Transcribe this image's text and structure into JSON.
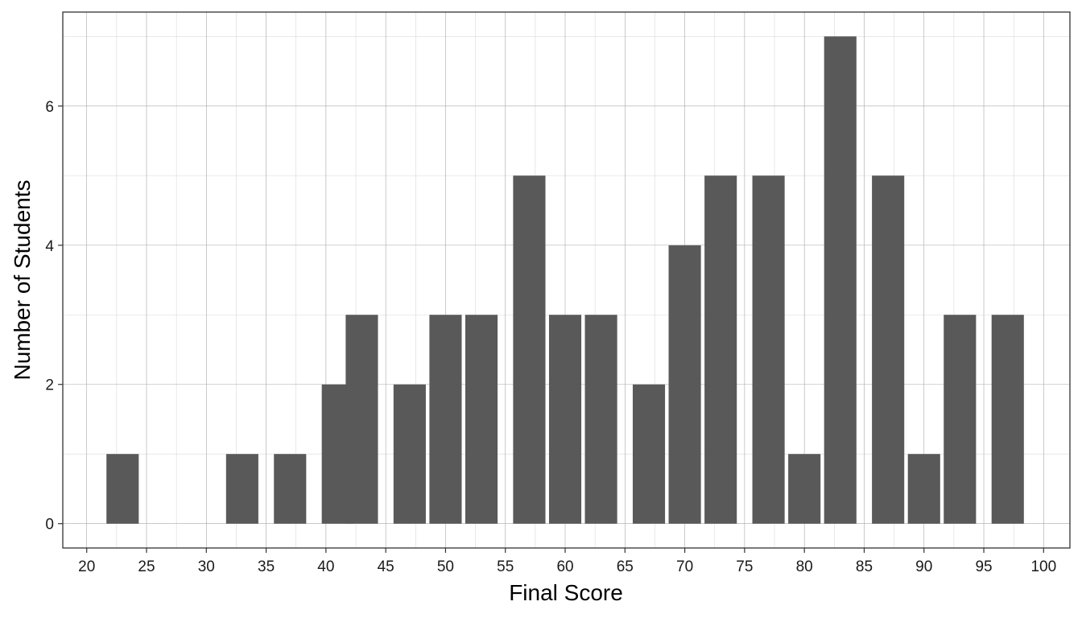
{
  "chart_data": {
    "type": "bar",
    "title": "",
    "xlabel": "Final Score",
    "ylabel": "Number of Students",
    "x": [
      23,
      33,
      37,
      41,
      43,
      47,
      50,
      53,
      57,
      60,
      63,
      67,
      70,
      73,
      77,
      80,
      83,
      87,
      90,
      93,
      97
    ],
    "values": [
      1,
      1,
      1,
      2,
      3,
      2,
      3,
      3,
      5,
      3,
      3,
      2,
      4,
      5,
      5,
      1,
      7,
      5,
      1,
      3,
      3
    ],
    "bar_width": 2.7,
    "xlim": [
      18.0,
      102.2
    ],
    "ylim": [
      -0.35,
      7.35
    ],
    "x_ticks": [
      20,
      25,
      30,
      35,
      40,
      45,
      50,
      55,
      60,
      65,
      70,
      75,
      80,
      85,
      90,
      95,
      100
    ],
    "x_tick_labels": [
      "20",
      "25",
      "30",
      "35",
      "40",
      "45",
      "50",
      "55",
      "60",
      "65",
      "70",
      "75",
      "80",
      "85",
      "90",
      "95",
      "100"
    ],
    "x_minor_ticks": [
      22.5,
      27.5,
      32.5,
      37.5,
      42.5,
      47.5,
      52.5,
      57.5,
      62.5,
      67.5,
      72.5,
      77.5,
      82.5,
      87.5,
      92.5,
      97.5
    ],
    "y_ticks": [
      0,
      2,
      4,
      6
    ],
    "y_tick_labels": [
      "0",
      "2",
      "4",
      "6"
    ],
    "y_minor_ticks": [
      1,
      3,
      5,
      7
    ],
    "grid": true,
    "legend": "none",
    "colors": {
      "bar": "#595959",
      "panel_border": "#333333",
      "grid_major": "#a8a8a8",
      "grid_minor": "#d9d9d9",
      "background": "#ffffff"
    }
  }
}
